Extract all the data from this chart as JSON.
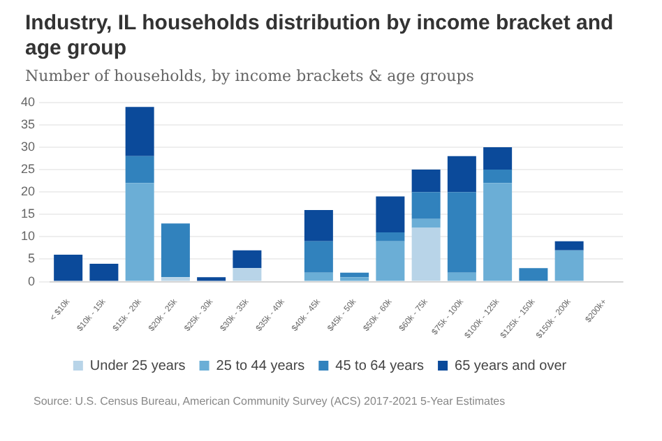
{
  "chart_data": {
    "type": "bar",
    "title": "Industry, IL households distribution by income bracket and age group",
    "subtitle": "Number of households, by income brackets & age groups",
    "categories": [
      "< $10k",
      "$10k - 15k",
      "$15k - 20k",
      "$20k - 25k",
      "$25k - 30k",
      "$30k - 35k",
      "$35k - 40k",
      "$40k - 45k",
      "$45k - 50k",
      "$50k - 60k",
      "$60k - 75k",
      "$75k - 100k",
      "$100k - 125k",
      "$125k - 150k",
      "$150k - 200k",
      "$200k+"
    ],
    "series": [
      {
        "name": "Under 25 years",
        "color": "#b8d4e8",
        "values": [
          0,
          0,
          0,
          1,
          0,
          3,
          0,
          0,
          0,
          0,
          12,
          0,
          0,
          0,
          0,
          0
        ]
      },
      {
        "name": "25 to 44 years",
        "color": "#6baed6",
        "values": [
          0,
          0,
          22,
          0,
          0,
          0,
          0,
          2,
          1,
          9,
          2,
          2,
          22,
          0,
          7,
          0
        ]
      },
      {
        "name": "45 to 64 years",
        "color": "#3182bd",
        "values": [
          0,
          0,
          6,
          12,
          0,
          0,
          0,
          7,
          1,
          2,
          6,
          18,
          3,
          3,
          0,
          0
        ]
      },
      {
        "name": "65 years and over",
        "color": "#0b4a9a",
        "values": [
          6,
          4,
          11,
          0,
          1,
          4,
          0,
          7,
          0,
          8,
          5,
          8,
          5,
          0,
          2,
          0
        ]
      }
    ],
    "stacked": true,
    "ylim": [
      0,
      40
    ],
    "yticks": [
      0,
      5,
      10,
      15,
      20,
      25,
      30,
      35,
      40
    ],
    "grid": "y",
    "legend": "bottom",
    "annotations": [
      "Source: U.S. Census Bureau, American Community Survey (ACS) 2017-2021 5-Year Estimates"
    ]
  }
}
